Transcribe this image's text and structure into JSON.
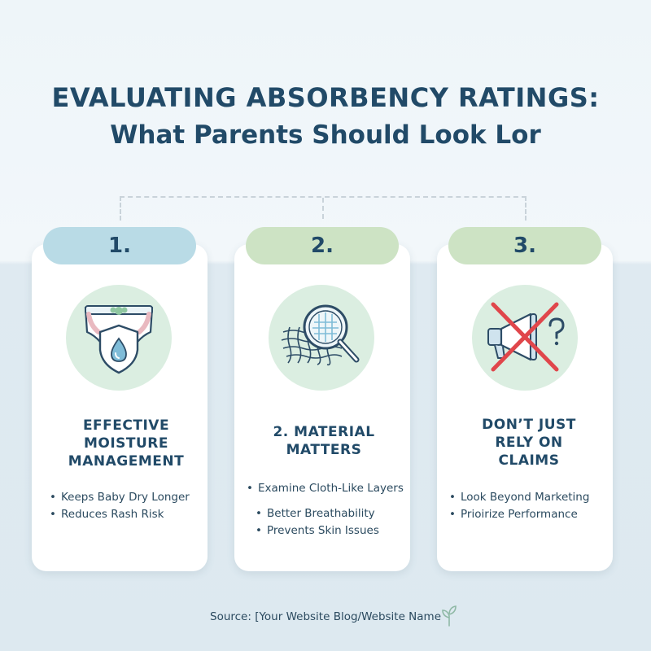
{
  "header": {
    "title_line1": "EVALUATING ABSORBENCY RATINGS:",
    "title_line2": "What Parents Should Look Lor"
  },
  "cards": [
    {
      "number": "1.",
      "icon": "diaper-shield-icon",
      "heading_lines": [
        "EFFECTIVE",
        "MOISTURE",
        "MANAGEMENT"
      ],
      "bullets": [
        "Keeps Baby Dry Longer",
        "Reduces Rash Risk"
      ]
    },
    {
      "number": "2.",
      "icon": "magnifying-glass-fabric-icon",
      "heading_lines": [
        "2. MATERIAL",
        "MATTERS"
      ],
      "bullets": [
        "Examine Cloth-Like Layers",
        "Better Breathability",
        "Prevents Skin Issues"
      ]
    },
    {
      "number": "3.",
      "icon": "crossed-megaphone-icon",
      "heading_lines": [
        "DON’T JUST",
        "RELY ON",
        "CLAIMS"
      ],
      "bullets": [
        "Look Beyond Marketing",
        "Prioirize Performance"
      ]
    }
  ],
  "footer": {
    "source": "Source: [Your Website Blog/Website Name",
    "icon": "leaf-icon"
  },
  "colors": {
    "title": "#214a68",
    "tab_blue": "#b9dbe6",
    "tab_green": "#cde3c4",
    "icon_circle": "#dbeee1",
    "cross_red": "#e0464b"
  }
}
